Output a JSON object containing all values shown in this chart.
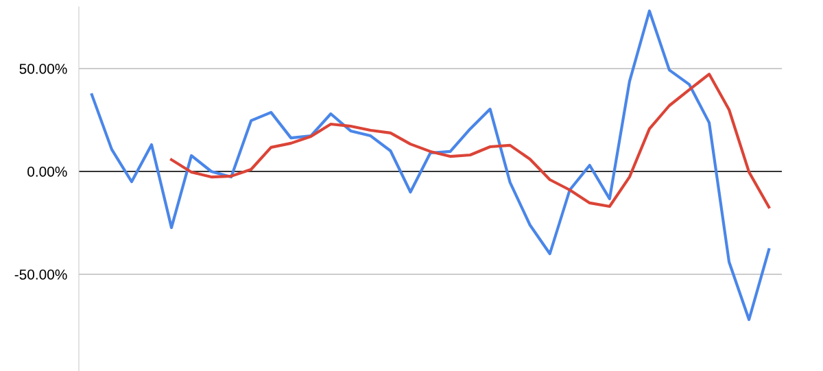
{
  "chart_data": {
    "type": "line",
    "categories": [
      null,
      null,
      null,
      null,
      null,
      null,
      null,
      null,
      null,
      null,
      null,
      null,
      null,
      null,
      null,
      null,
      null,
      null,
      null,
      null,
      null,
      null,
      null,
      null,
      null,
      null,
      null,
      null,
      null,
      null,
      null,
      null,
      null,
      null,
      null
    ],
    "series": [
      {
        "color": "#4a86e8",
        "values": [
          37.3,
          10.7,
          -5,
          13,
          -27.3,
          7.7,
          0,
          -2.7,
          24.7,
          28.7,
          16.3,
          17.3,
          28,
          19.7,
          17.3,
          10,
          -10,
          9,
          9.7,
          20.7,
          30.3,
          -5.3,
          -26,
          -40,
          -9,
          3,
          -13.3,
          43.7,
          78,
          49.3,
          42.3,
          23.7,
          -44,
          -72,
          -38
        ]
      },
      {
        "color": "#db4437",
        "values": [
          null,
          null,
          null,
          null,
          5.7,
          -0.3,
          -2.7,
          -2.3,
          1,
          11.7,
          13.7,
          17,
          23,
          22,
          20,
          18.7,
          13.3,
          9.7,
          7.3,
          8,
          12,
          12.7,
          6,
          -4,
          -9,
          -15.3,
          -17,
          -2.7,
          20.7,
          32,
          39.7,
          47.3,
          30,
          -0.3,
          -17.3
        ]
      }
    ],
    "ylim": [
      -97,
      80
    ],
    "yticks": [
      {
        "value": 50,
        "label": "50.00%"
      },
      {
        "value": 0,
        "label": "0.00%"
      },
      {
        "value": -50,
        "label": "-50.00%"
      }
    ],
    "grid": "y",
    "ref_lines": [
      {
        "axis": "y",
        "value": 0,
        "color": "#000000"
      }
    ],
    "legend": false,
    "marker": "none",
    "line_style": "solid"
  }
}
